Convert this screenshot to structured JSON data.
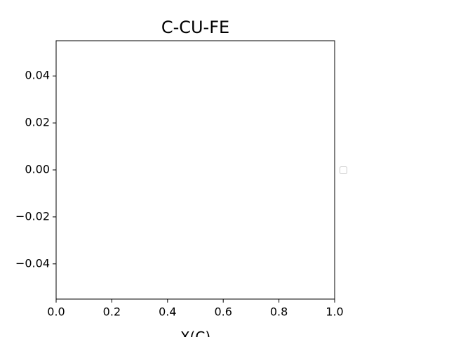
{
  "chart_data": {
    "type": "line",
    "title": "C-CU-FE",
    "x_label": "X(C)",
    "series": [],
    "xlim": [
      0,
      1
    ],
    "xticks": [
      {
        "value": 0,
        "label": "0.0"
      },
      {
        "value": 0.2,
        "label": "0.2"
      },
      {
        "value": 0.4,
        "label": "0.4"
      },
      {
        "value": 0.6,
        "label": "0.6"
      },
      {
        "value": 0.8,
        "label": "0.8"
      },
      {
        "value": 1,
        "label": "1.0"
      }
    ],
    "ylim": [
      -0.055,
      0.055
    ],
    "yticks": [
      {
        "value": -0.04,
        "label": "−0.04"
      },
      {
        "value": -0.02,
        "label": "−0.02"
      },
      {
        "value": 0,
        "label": "0.00"
      },
      {
        "value": 0.02,
        "label": "0.02"
      },
      {
        "value": 0.04,
        "label": "0.04"
      }
    ],
    "grid": false
  }
}
